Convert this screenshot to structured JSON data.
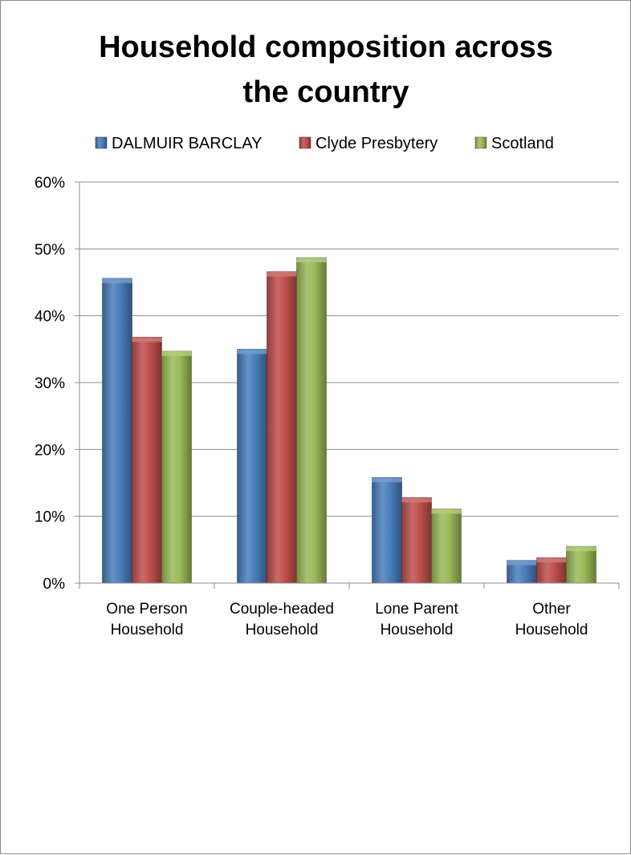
{
  "chart_data": {
    "type": "bar",
    "title": "Household composition across the country",
    "title_lines": [
      "Household composition across",
      "the country"
    ],
    "categories": [
      [
        "One Person",
        "Household"
      ],
      [
        "Couple-headed",
        "Household"
      ],
      [
        "Lone Parent",
        "Household"
      ],
      [
        "Other",
        "Household"
      ]
    ],
    "series": [
      {
        "name": "DALMUIR BARCLAY",
        "color": "#4a7ebb",
        "values": [
          45.6,
          35.0,
          15.8,
          3.4
        ]
      },
      {
        "name": "Clyde Presbytery",
        "color": "#c0504d",
        "values": [
          36.8,
          46.6,
          12.8,
          3.8
        ]
      },
      {
        "name": "Scotland",
        "color": "#9bbb59",
        "values": [
          34.7,
          48.7,
          11.1,
          5.5
        ]
      }
    ],
    "y_ticks": [
      "0%",
      "10%",
      "20%",
      "30%",
      "40%",
      "50%",
      "60%"
    ],
    "ylim": [
      0,
      60
    ],
    "grid": true,
    "legend_position": "top"
  }
}
